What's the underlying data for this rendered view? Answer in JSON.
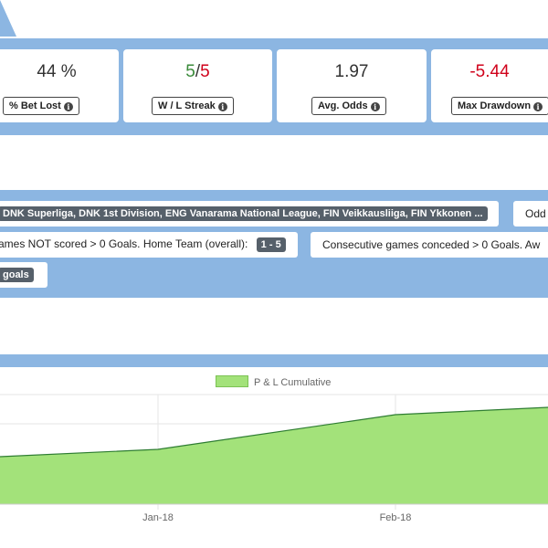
{
  "stats": [
    {
      "value": "44 %",
      "label": "% Bet Lost"
    },
    {
      "streak_win": "5",
      "streak_sep": "/",
      "streak_loss": "5",
      "label": "W / L Streak"
    },
    {
      "value": "1.97",
      "label": "Avg. Odds"
    },
    {
      "value": "-5.44",
      "label": "Max Drawdown"
    }
  ],
  "filters": {
    "leagues_tag": "DNK Superliga, DNK 1st Division, ENG Vanarama National League, FIN Veikkausliiga, FIN Ykkonen ...",
    "odds_text": "Odd",
    "not_scored_text": "ames NOT scored > 0 Goals. Home Team (overall):",
    "not_scored_tag": "1 - 5",
    "conceded_text": "Consecutive games conceded > 0 Goals. Aw",
    "goals_tag": "goals"
  },
  "chart_data": {
    "type": "area",
    "series": [
      {
        "name": "P & L Cumulative"
      }
    ],
    "x_tick_labels": [
      "Jan-18",
      "Feb-18"
    ],
    "grid": true,
    "legend_position": "top"
  },
  "colors": {
    "band": "#8cb6e2",
    "area_fill": "#a3e27a",
    "area_line": "#2e7d32",
    "positive": "#3a8a3a",
    "negative": "#d0021b"
  }
}
